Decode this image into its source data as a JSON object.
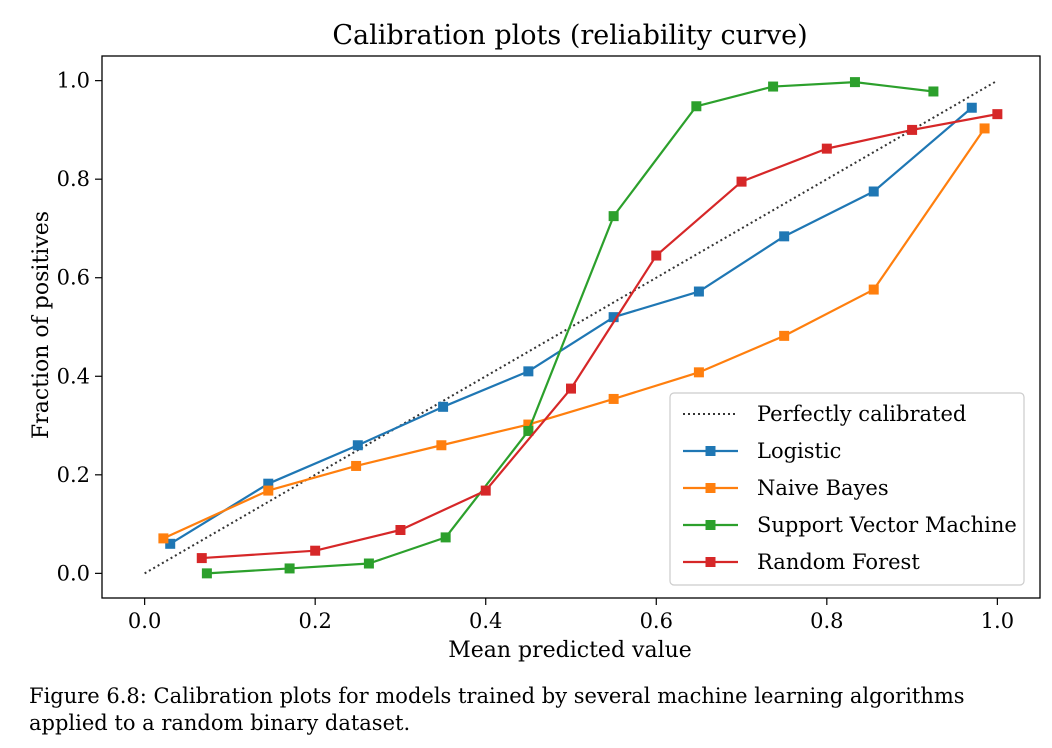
{
  "chart_data": {
    "type": "line",
    "title": "Calibration plots  (reliability curve)",
    "xlabel": "Mean predicted value",
    "ylabel": "Fraction of positives",
    "xlim": [
      -0.05,
      1.05
    ],
    "ylim": [
      -0.05,
      1.05
    ],
    "xticks": [
      0.0,
      0.2,
      0.4,
      0.6,
      0.8,
      1.0
    ],
    "xtick_labels": [
      "0.0",
      "0.2",
      "0.4",
      "0.6",
      "0.8",
      "1.0"
    ],
    "yticks": [
      0.0,
      0.2,
      0.4,
      0.6,
      0.8,
      1.0
    ],
    "ytick_labels": [
      "0.0",
      "0.2",
      "0.4",
      "0.6",
      "0.8",
      "1.0"
    ],
    "grid": false,
    "legend_position": "lower-right",
    "reference": {
      "name": "Perfectly calibrated",
      "x": [
        0.0,
        1.0
      ],
      "y": [
        0.0,
        1.0
      ],
      "color": "#333333",
      "style": "dotted"
    },
    "series": [
      {
        "name": "Logistic",
        "color": "#1f77b4",
        "x": [
          0.03,
          0.145,
          0.25,
          0.35,
          0.45,
          0.55,
          0.65,
          0.75,
          0.855,
          0.97
        ],
        "y": [
          0.06,
          0.182,
          0.26,
          0.338,
          0.41,
          0.52,
          0.572,
          0.684,
          0.775,
          0.945
        ]
      },
      {
        "name": "Naive Bayes",
        "color": "#ff7f0e",
        "x": [
          0.022,
          0.145,
          0.248,
          0.348,
          0.45,
          0.55,
          0.65,
          0.75,
          0.855,
          0.985
        ],
        "y": [
          0.071,
          0.168,
          0.218,
          0.26,
          0.302,
          0.354,
          0.408,
          0.482,
          0.576,
          0.903
        ]
      },
      {
        "name": "Support Vector Machine",
        "color": "#2ca02c",
        "x": [
          0.073,
          0.17,
          0.263,
          0.353,
          0.45,
          0.55,
          0.647,
          0.737,
          0.833,
          0.925
        ],
        "y": [
          0.0,
          0.01,
          0.02,
          0.073,
          0.289,
          0.725,
          0.948,
          0.988,
          0.997,
          0.978
        ]
      },
      {
        "name": "Random Forest",
        "color": "#d62728",
        "x": [
          0.067,
          0.2,
          0.3,
          0.4,
          0.5,
          0.6,
          0.7,
          0.8,
          0.9,
          1.0
        ],
        "y": [
          0.031,
          0.046,
          0.088,
          0.168,
          0.375,
          0.645,
          0.795,
          0.862,
          0.9,
          0.932
        ]
      }
    ]
  },
  "caption": "Figure 6.8: Calibration plots for models trained by several machine learning algorithms applied to a random binary dataset."
}
